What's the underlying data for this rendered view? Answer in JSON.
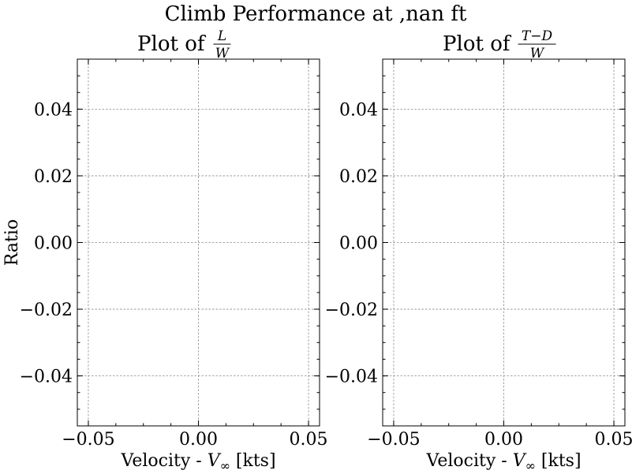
{
  "figure": {
    "suptitle": "Climb Performance at ,nan ft"
  },
  "chart_data": [
    {
      "type": "line",
      "title_prefix": "Plot of",
      "title_numerator": "L",
      "title_denominator": "W",
      "xlabel_prefix": "Velocity - ",
      "xlabel_var": "V",
      "xlabel_sub": "∞",
      "xlabel_suffix": " [kts]",
      "ylabel": "Ratio",
      "xlim": [
        -0.055,
        0.055
      ],
      "ylim": [
        -0.055,
        0.055
      ],
      "xticks": [
        -0.05,
        0.0,
        0.05
      ],
      "xtick_labels": [
        "−0.05",
        "0.00",
        "0.05"
      ],
      "yticks": [
        -0.04,
        -0.02,
        0.0,
        0.02,
        0.04
      ],
      "ytick_labels": [
        "−0.04",
        "−0.02",
        "0.00",
        "0.02",
        "0.04"
      ],
      "grid": true,
      "series": []
    },
    {
      "type": "line",
      "title_prefix": "Plot of",
      "title_numerator": "T−D",
      "title_denominator": "W",
      "xlabel_prefix": "Velocity - ",
      "xlabel_var": "V",
      "xlabel_sub": "∞",
      "xlabel_suffix": " [kts]",
      "ylabel": "",
      "xlim": [
        -0.055,
        0.055
      ],
      "ylim": [
        -0.055,
        0.055
      ],
      "xticks": [
        -0.05,
        0.0,
        0.05
      ],
      "xtick_labels": [
        "−0.05",
        "0.00",
        "0.05"
      ],
      "yticks": [
        -0.04,
        -0.02,
        0.0,
        0.02,
        0.04
      ],
      "ytick_labels": [
        "−0.04",
        "−0.02",
        "0.00",
        "0.02",
        "0.04"
      ],
      "grid": true,
      "series": []
    }
  ]
}
